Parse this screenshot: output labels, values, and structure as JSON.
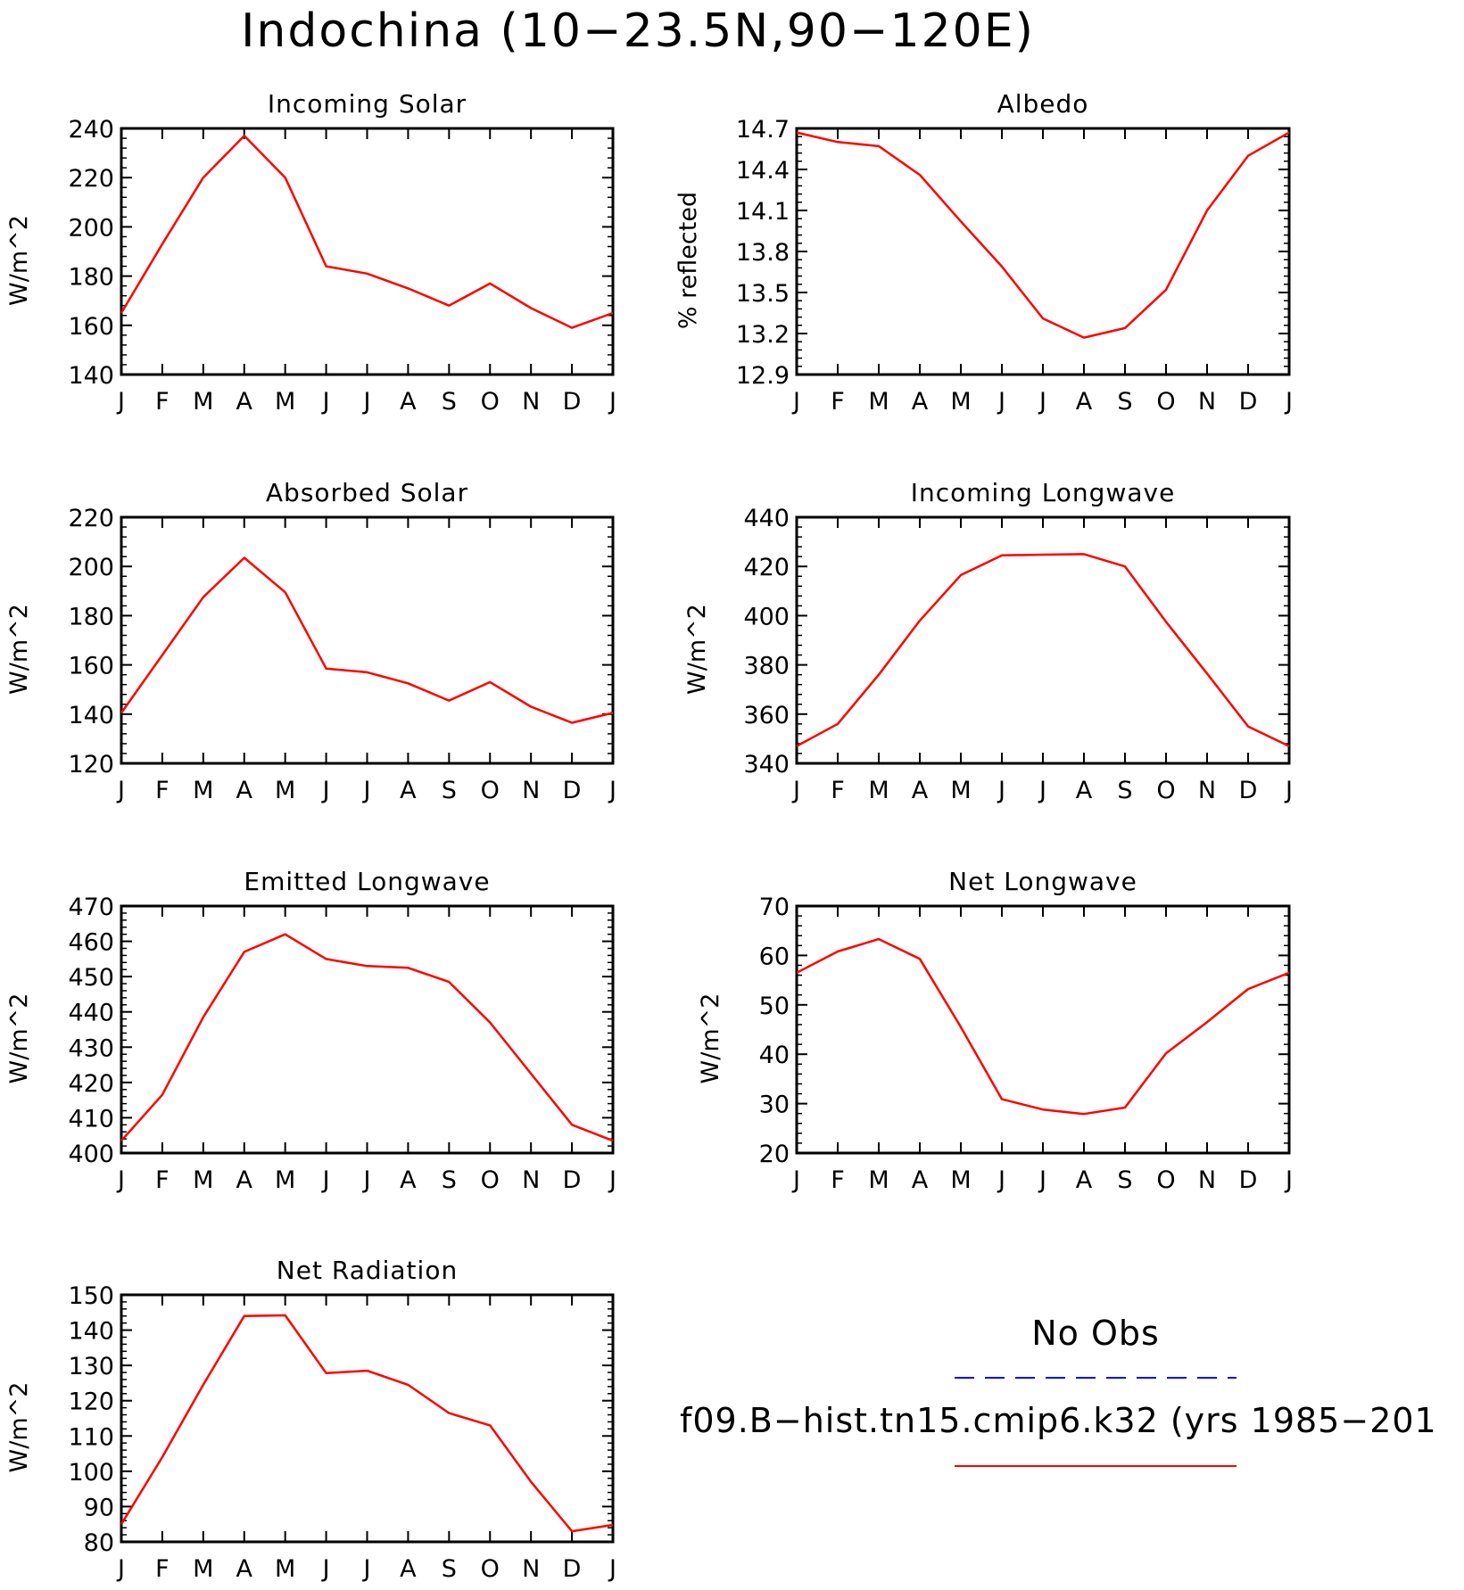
{
  "figure": {
    "title": "Indochina (10−23.5N,90−120E)",
    "months": [
      "J",
      "F",
      "M",
      "A",
      "M",
      "J",
      "J",
      "A",
      "S",
      "O",
      "N",
      "D",
      "J"
    ],
    "line_color": "#ff0000",
    "obs_line_color": "#0000ff"
  },
  "legend": {
    "obs_label": "No Obs",
    "model_label": "f09.B−hist.tn15.cmip6.k32 (yrs 1985−201"
  },
  "chart_data": [
    {
      "type": "line",
      "title": "Incoming Solar",
      "ylabel": "W/m^2",
      "ylim": [
        140,
        240
      ],
      "yticks": [
        140,
        160,
        180,
        200,
        220,
        240
      ],
      "categories": [
        "J",
        "F",
        "M",
        "A",
        "M",
        "J",
        "J",
        "A",
        "S",
        "O",
        "N",
        "D",
        "J"
      ],
      "values": [
        165,
        193,
        220,
        237,
        220,
        184,
        181,
        175,
        168,
        177,
        167,
        159,
        165
      ]
    },
    {
      "type": "line",
      "title": "Albedo",
      "ylabel": "% reflected",
      "ylim": [
        12.9,
        14.7
      ],
      "yticks": [
        "12.9",
        "13.2",
        "13.5",
        "13.8",
        "14.1",
        "14.4",
        "14.7"
      ],
      "categories": [
        "J",
        "F",
        "M",
        "A",
        "M",
        "J",
        "J",
        "A",
        "S",
        "O",
        "N",
        "D",
        "J"
      ],
      "values": [
        14.67,
        14.6,
        14.57,
        14.36,
        14.02,
        13.69,
        13.31,
        13.17,
        13.24,
        13.52,
        14.1,
        14.5,
        14.67
      ]
    },
    {
      "type": "line",
      "title": "Absorbed Solar",
      "ylabel": "W/m^2",
      "ylim": [
        120,
        220
      ],
      "yticks": [
        120,
        140,
        160,
        180,
        200,
        220
      ],
      "categories": [
        "J",
        "F",
        "M",
        "A",
        "M",
        "J",
        "J",
        "A",
        "S",
        "O",
        "N",
        "D",
        "J"
      ],
      "values": [
        140.5,
        164,
        187.5,
        203.5,
        189.5,
        158.5,
        157,
        152.5,
        145.5,
        153,
        143,
        136.5,
        140.5
      ]
    },
    {
      "type": "line",
      "title": "Incoming Longwave",
      "ylabel": "W/m^2",
      "ylim": [
        340,
        440
      ],
      "yticks": [
        340,
        360,
        380,
        400,
        420,
        440
      ],
      "categories": [
        "J",
        "F",
        "M",
        "A",
        "M",
        "J",
        "J",
        "A",
        "S",
        "O",
        "N",
        "D",
        "J"
      ],
      "values": [
        347,
        356,
        376,
        398,
        416.5,
        424.5,
        424.8,
        425,
        420,
        397.5,
        376.5,
        355,
        347
      ]
    },
    {
      "type": "line",
      "title": "Emitted Longwave",
      "ylabel": "W/m^2",
      "ylim": [
        400,
        470
      ],
      "yticks": [
        400,
        410,
        420,
        430,
        440,
        450,
        460,
        470
      ],
      "categories": [
        "J",
        "F",
        "M",
        "A",
        "M",
        "J",
        "J",
        "A",
        "S",
        "O",
        "N",
        "D",
        "J"
      ],
      "values": [
        403.5,
        416.5,
        438.5,
        457,
        462,
        455,
        453,
        452.5,
        448.5,
        437,
        422.5,
        408,
        403.5
      ]
    },
    {
      "type": "line",
      "title": "Net Longwave",
      "ylabel": "W/m^2",
      "ylim": [
        20,
        70
      ],
      "yticks": [
        20,
        30,
        40,
        50,
        60,
        70
      ],
      "categories": [
        "J",
        "F",
        "M",
        "A",
        "M",
        "J",
        "J",
        "A",
        "S",
        "O",
        "N",
        "D",
        "J"
      ],
      "values": [
        56.5,
        60.8,
        63.3,
        59.3,
        45.5,
        30.9,
        28.8,
        27.9,
        29.2,
        40.2,
        46.5,
        53.2,
        56.5
      ]
    },
    {
      "type": "line",
      "title": "Net Radiation",
      "ylabel": "W/m^2",
      "ylim": [
        80,
        150
      ],
      "yticks": [
        80,
        90,
        100,
        110,
        120,
        130,
        140,
        150
      ],
      "categories": [
        "J",
        "F",
        "M",
        "A",
        "M",
        "J",
        "J",
        "A",
        "S",
        "O",
        "N",
        "D",
        "J"
      ],
      "values": [
        85,
        104,
        124.5,
        144,
        144.2,
        127.8,
        128.5,
        124.5,
        116.5,
        113,
        97,
        83,
        84.8
      ]
    }
  ]
}
